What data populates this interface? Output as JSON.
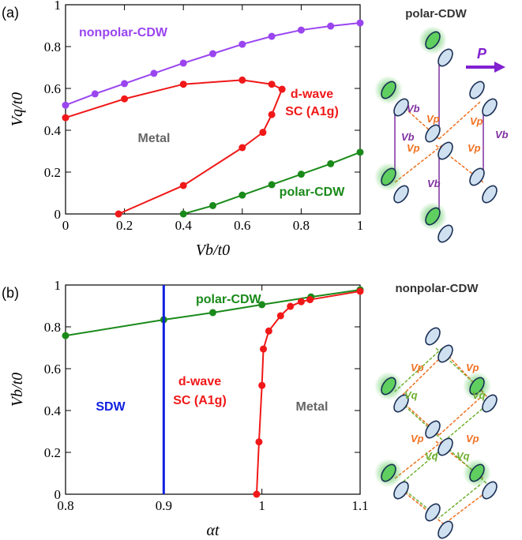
{
  "chart_data": [
    {
      "type": "line",
      "panel": "(a)",
      "xlabel": "Vb/t0",
      "ylabel": "Vq/t0",
      "xlim": [
        0,
        1
      ],
      "ylim": [
        0,
        1
      ],
      "xticks": [
        0,
        0.2,
        0.4,
        0.6,
        0.8,
        1
      ],
      "yticks": [
        0,
        0.2,
        0.4,
        0.6,
        0.8,
        1
      ],
      "series": [
        {
          "color": "#9a45f0",
          "x": [
            0,
            0.1,
            0.2,
            0.3,
            0.4,
            0.5,
            0.6,
            0.7,
            0.8,
            0.9,
            1
          ],
          "values": [
            0.52,
            0.574,
            0.623,
            0.672,
            0.721,
            0.766,
            0.811,
            0.849,
            0.879,
            0.898,
            0.913
          ]
        },
        {
          "color": "#f01818",
          "x": [
            0,
            0.2,
            0.4,
            0.6,
            0.7,
            0.735,
            0.7,
            0.67,
            0.6,
            0.4,
            0.18
          ],
          "values": [
            0.46,
            0.55,
            0.62,
            0.64,
            0.62,
            0.596,
            0.475,
            0.39,
            0.317,
            0.136,
            0
          ]
        },
        {
          "color": "#1a8a1a",
          "x": [
            0.4,
            0.5,
            0.6,
            0.7,
            0.8,
            0.9,
            1
          ],
          "values": [
            0,
            0.04,
            0.09,
            0.14,
            0.19,
            0.24,
            0.295
          ]
        }
      ],
      "annotations": [
        {
          "text": "nonpolar-CDW",
          "color": "#9a45f0"
        },
        {
          "text": "d-wave",
          "color": "#f01818"
        },
        {
          "text": "SC (A1g)",
          "color": "#f01818"
        },
        {
          "text": "Metal",
          "color": "#666666"
        },
        {
          "text": "polar-CDW",
          "color": "#1a8a1a"
        }
      ]
    },
    {
      "type": "line",
      "panel": "(b)",
      "xlabel": "αt",
      "ylabel": "Vb/t0",
      "xlim": [
        0.8,
        1.1
      ],
      "ylim": [
        0,
        1
      ],
      "xticks": [
        0.8,
        0.9,
        1,
        1.1
      ],
      "yticks": [
        0,
        0.2,
        0.4,
        0.6,
        0.8,
        1
      ],
      "series": [
        {
          "color": "#1a8a1a",
          "x": [
            0.8,
            0.9,
            0.95,
            1,
            1.05,
            1.1
          ],
          "values": [
            0.758,
            0.834,
            0.868,
            0.906,
            0.943,
            0.977
          ]
        },
        {
          "color": "#1020e0",
          "x": [
            0.9,
            0.9
          ],
          "values": [
            0,
            1
          ]
        },
        {
          "color": "#f01818",
          "x": [
            0.9946,
            0.997,
            1,
            1.0015,
            1.007,
            1.019,
            1.029,
            1.04,
            1.049,
            1.1
          ],
          "values": [
            0,
            0.25,
            0.52,
            0.694,
            0.78,
            0.853,
            0.898,
            0.92,
            0.93,
            0.97
          ]
        }
      ],
      "annotations": [
        {
          "text": "polar-CDW",
          "color": "#1a8a1a"
        },
        {
          "text": "SDW",
          "color": "#1020e0"
        },
        {
          "text": "d-wave",
          "color": "#f01818"
        },
        {
          "text": "SC (A1g)",
          "color": "#f01818"
        },
        {
          "text": "Metal",
          "color": "#666666"
        }
      ]
    }
  ],
  "schematics": [
    {
      "title": "polar-CDW",
      "arrow": "P",
      "labels": [
        "Vb",
        "Vb",
        "Vb",
        "Vb",
        "Vp",
        "Vp",
        "Vp",
        "Vp"
      ]
    },
    {
      "title": "nonpolar-CDW",
      "labels": [
        "Vp",
        "Vp",
        "Vp",
        "Vp",
        "Vq",
        "Vq",
        "Vq",
        "Vq"
      ]
    }
  ]
}
